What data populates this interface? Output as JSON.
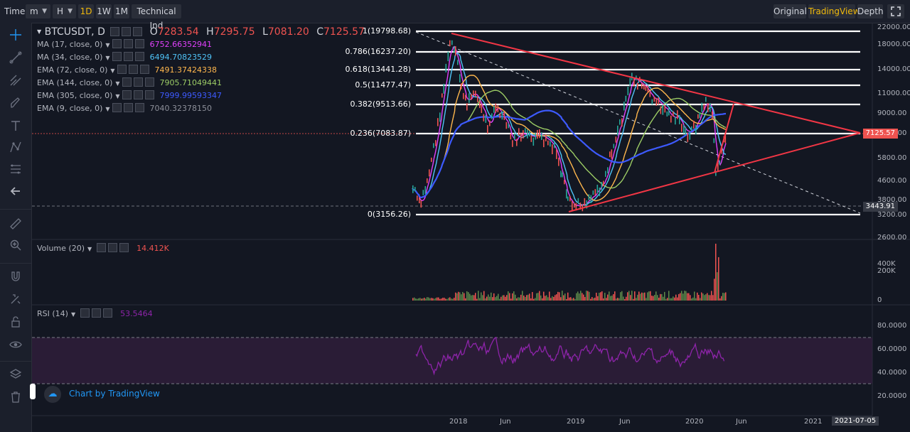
{
  "toolbar": {
    "time_label": "Time",
    "minute_select": "m",
    "hour_select": "H",
    "intervals": [
      "1D",
      "1W",
      "1M"
    ],
    "active_interval": "1D",
    "technical_ind": "Technical Ind",
    "views": [
      "Original",
      "TradingView",
      "Depth"
    ],
    "active_view": "TradingView"
  },
  "left_tools": [
    "crosshair-icon",
    "trendline-icon",
    "pitchfork-icon",
    "brush-icon",
    "text-icon",
    "pattern-icon",
    "fib-icon",
    "back-arrow-icon",
    "ruler-icon",
    "zoom-icon",
    "magnet-icon",
    "lock-drawing-icon",
    "lock-icon",
    "eye-icon",
    "layers-icon",
    "trash-icon"
  ],
  "legend": {
    "symbol": "BTCUSDT, D",
    "open_label": "O",
    "open": "7283.54",
    "high_label": "H",
    "high": "7295.75",
    "low_label": "L",
    "low": "7081.20",
    "close_label": "C",
    "close": "7125.57",
    "studies": [
      {
        "name": "MA (17, close, 0)",
        "value": "6752.66352941",
        "color": "#e040fb"
      },
      {
        "name": "MA (34, close, 0)",
        "value": "6494.70823529",
        "color": "#4fc3f7"
      },
      {
        "name": "EMA (72, close, 0)",
        "value": "7491.37424338",
        "color": "#ffb74d"
      },
      {
        "name": "EMA (144, close, 0)",
        "value": "7905.71049441",
        "color": "#9ccc65"
      },
      {
        "name": "EMA (305, close, 0)",
        "value": "7999.99593347",
        "color": "#3d5afe"
      },
      {
        "name": "EMA (9, close, 0)",
        "value": "7040.32378150",
        "color": "#8c8f99"
      }
    ]
  },
  "fib_levels": [
    {
      "label": "1(19798.68)",
      "price": 19798.68
    },
    {
      "label": "0.786(16237.20)",
      "price": 16237.2
    },
    {
      "label": "0.618(13441.28)",
      "price": 13441.28
    },
    {
      "label": "0.5(11477.47)",
      "price": 11477.47
    },
    {
      "label": "0.382(9513.66)",
      "price": 9513.66
    },
    {
      "label": "0.236(7083.87)",
      "price": 7083.87
    },
    {
      "label": "0(3156.26)",
      "price": 3156.26
    }
  ],
  "price_axis": [
    "22000.00",
    "18000.00",
    "14000.00",
    "11000.00",
    "9000.00",
    "7000.00",
    "5800.00",
    "4600.00",
    "3800.00",
    "3200.00",
    "2600.00"
  ],
  "price_badges": {
    "last": "7125.57",
    "crosshair": "3443.91"
  },
  "volume": {
    "label": "Volume (20)",
    "value": "14.412K",
    "axis": [
      "400K",
      "200K",
      "0"
    ]
  },
  "rsi": {
    "label": "RSI (14)",
    "value": "53.5464",
    "axis": [
      "80.0000",
      "60.0000",
      "40.0000",
      "20.0000"
    ]
  },
  "time_axis": [
    "2018",
    "Jun",
    "2019",
    "Jun",
    "2020",
    "Jun",
    "2021"
  ],
  "time_badge": "2021-07-05",
  "watermark": "Chart by TradingView",
  "colors": {
    "up": "#26a69a",
    "down": "#ef5350",
    "accent": "#f0b90b",
    "fib": "#ffffff",
    "trend": "#f23645",
    "rsi": "#8e24aa"
  }
}
